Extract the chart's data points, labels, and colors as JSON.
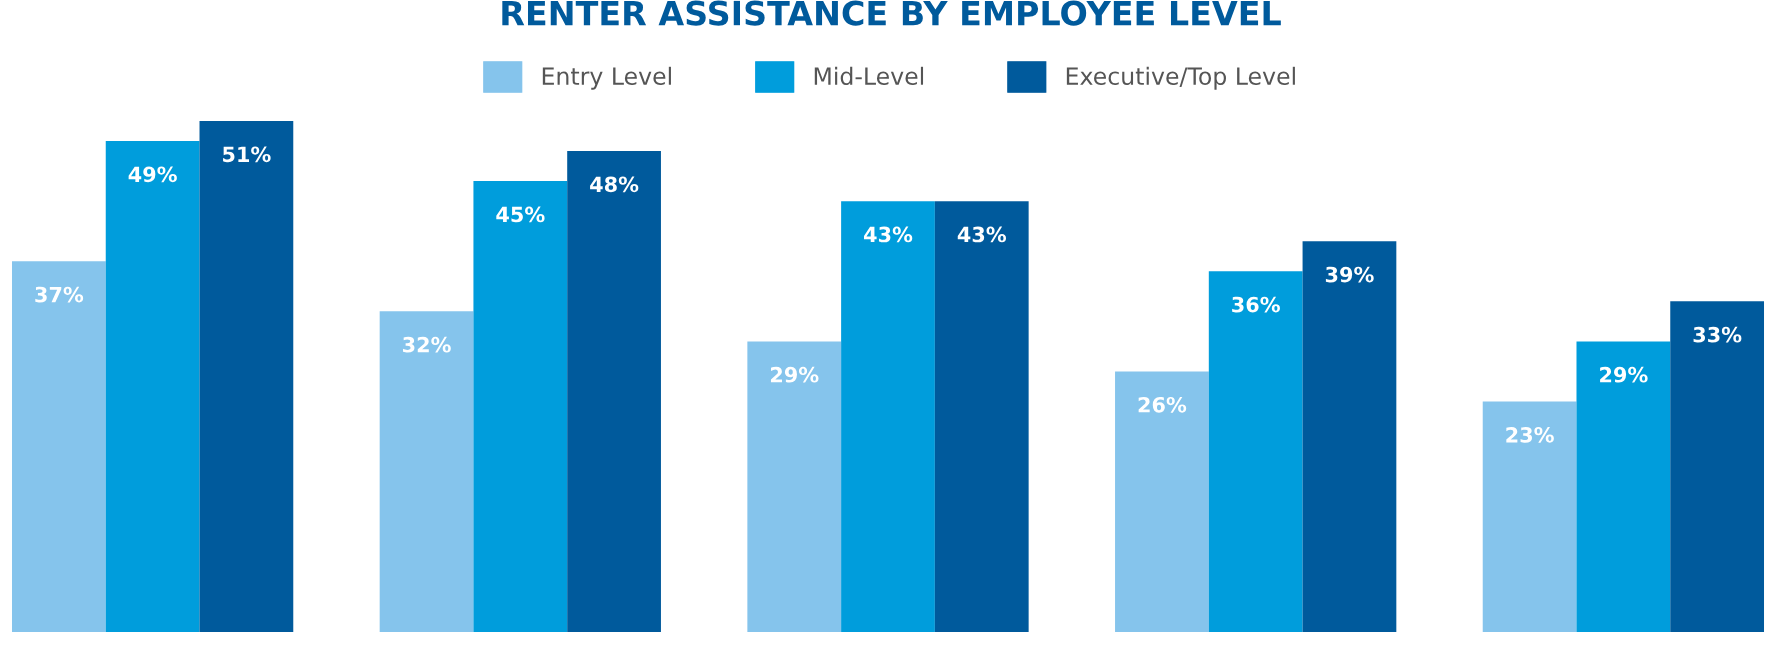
{
  "chart_data": {
    "type": "bar",
    "title": "RENTER ASSISTANCE BY EMPLOYEE LEVEL",
    "categories": [
      null,
      null,
      null,
      null,
      null
    ],
    "series": [
      {
        "name": "Entry Level",
        "color": "#85c4ec",
        "values": [
          37,
          32,
          29,
          26,
          23
        ],
        "value_labels": [
          "37%",
          "32%",
          "29%",
          "26%",
          "23%"
        ]
      },
      {
        "name": "Mid-Level",
        "color": "#009ddc",
        "values": [
          49,
          45,
          43,
          36,
          29
        ],
        "value_labels": [
          "49%",
          "45%",
          "43%",
          "36%",
          "29%"
        ]
      },
      {
        "name": "Executive/Top Level",
        "color": "#005a9c",
        "values": [
          51,
          48,
          43,
          39,
          33
        ],
        "value_labels": [
          "51%",
          "48%",
          "43%",
          "39%",
          "33%"
        ]
      }
    ],
    "legend": "top",
    "grid": false
  }
}
